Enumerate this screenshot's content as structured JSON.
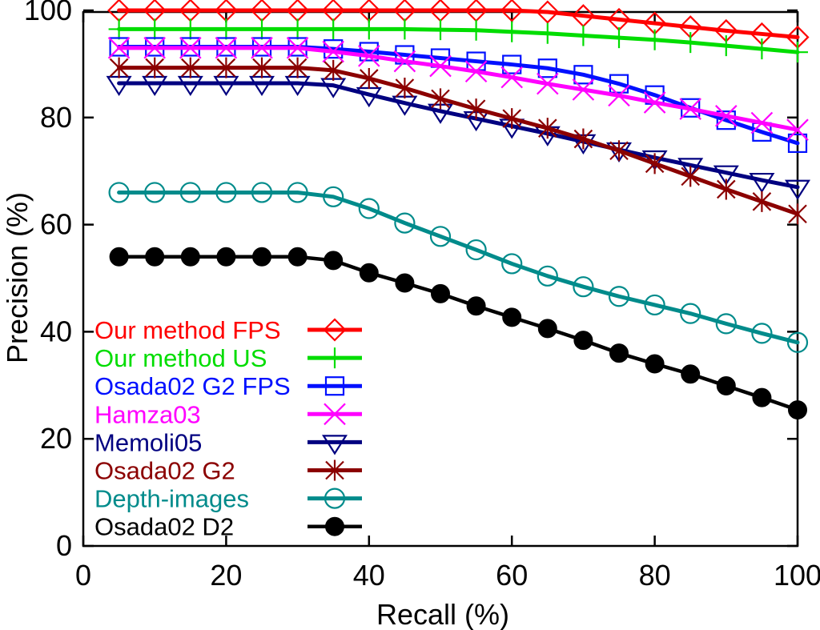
{
  "chart_data": {
    "type": "line",
    "title": "",
    "xlabel": "Recall (%)",
    "ylabel": "Precision (%)",
    "xlim": [
      0,
      100
    ],
    "ylim": [
      0,
      100
    ],
    "x_ticks": [
      0,
      20,
      40,
      60,
      80,
      100
    ],
    "y_ticks": [
      0,
      20,
      40,
      60,
      80,
      100
    ],
    "grid": false,
    "legend_position": "inside-bottom-left",
    "x": [
      5,
      10,
      15,
      20,
      25,
      30,
      35,
      40,
      45,
      50,
      55,
      60,
      65,
      70,
      75,
      80,
      85,
      90,
      95,
      100
    ],
    "series": [
      {
        "name": "Our method FPS",
        "color": "#ff0000",
        "marker": "diamond",
        "values": [
          100,
          100,
          100,
          100,
          100,
          100,
          100,
          100,
          100,
          100,
          100,
          100,
          99.7,
          99,
          98.3,
          97.6,
          96.9,
          96.2,
          95.6,
          95
        ]
      },
      {
        "name": "Our method US",
        "color": "#00dd00",
        "marker": "plus",
        "values": [
          96.5,
          96.5,
          96.5,
          96.5,
          96.5,
          96.5,
          96.5,
          96.5,
          96.5,
          96.4,
          96.3,
          96,
          95.7,
          95.3,
          94.9,
          94.5,
          94,
          93.4,
          92.8,
          92.2
        ]
      },
      {
        "name": "Osada02 G2 FPS",
        "color": "#0010ff",
        "marker": "square",
        "values": [
          93.2,
          93.2,
          93.2,
          93.2,
          93.2,
          93.2,
          92.8,
          92.3,
          91.7,
          91.1,
          90.5,
          89.9,
          89.2,
          88,
          86.3,
          84.2,
          81.8,
          79.5,
          77.3,
          75.2
        ]
      },
      {
        "name": "Hamza03",
        "color": "#ff00ff",
        "marker": "xcross",
        "values": [
          93,
          93,
          93,
          93,
          93,
          93,
          92.3,
          91.5,
          90.5,
          89.6,
          88.6,
          87.5,
          86.3,
          85.2,
          84.1,
          82.8,
          81.6,
          80.3,
          79,
          77.7
        ]
      },
      {
        "name": "Memoli05",
        "color": "#000080",
        "marker": "triangle-down",
        "values": [
          86.4,
          86.4,
          86.4,
          86.4,
          86.4,
          86.4,
          86,
          84.3,
          82.7,
          81.2,
          79.8,
          78.4,
          77,
          75.5,
          74,
          72.5,
          71.1,
          69.7,
          68.3,
          67
        ]
      },
      {
        "name": "Osada02 G2",
        "color": "#8b0000",
        "marker": "asterisk",
        "values": [
          89.3,
          89.3,
          89.3,
          89.3,
          89.3,
          89.3,
          88.8,
          87.3,
          85.5,
          83.5,
          81.6,
          79.8,
          78,
          76,
          73.8,
          71.4,
          69,
          66.6,
          64.3,
          62
        ]
      },
      {
        "name": "Depth-images",
        "color": "#008b8b",
        "marker": "circle",
        "values": [
          66,
          66,
          66,
          66,
          66,
          66,
          65.2,
          63,
          60.3,
          57.8,
          55.3,
          52.7,
          50.4,
          48.4,
          46.6,
          45,
          43.4,
          41.5,
          39.7,
          38
        ]
      },
      {
        "name": "Osada02 D2",
        "color": "#000000",
        "marker": "dot",
        "values": [
          54,
          54,
          54,
          54,
          54,
          54,
          53.3,
          51,
          49.1,
          47.1,
          44.8,
          42.7,
          40.6,
          38.4,
          36,
          34,
          32.1,
          29.9,
          27.7,
          25.4
        ]
      }
    ]
  },
  "style": {
    "axis_color": "#000000",
    "background": "#ffffff"
  }
}
